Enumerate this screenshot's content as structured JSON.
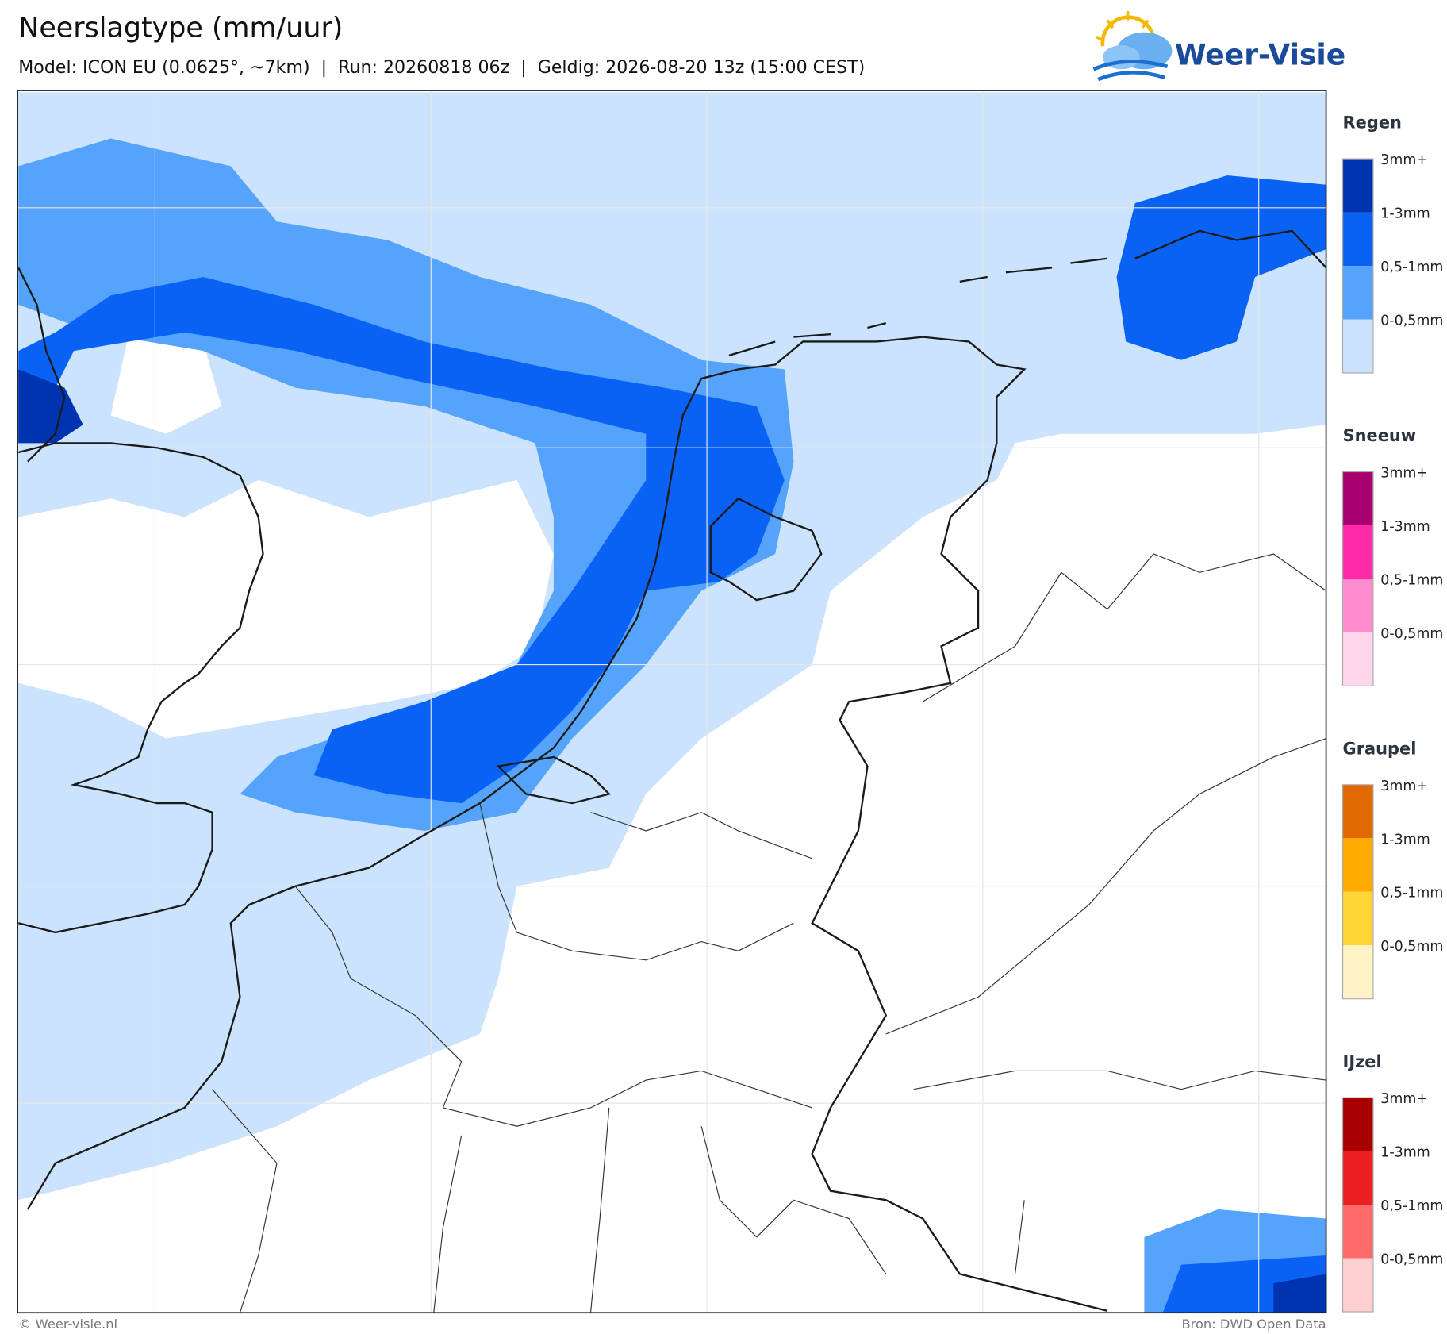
{
  "header": {
    "title": "Neerslagtype (mm/uur)",
    "subtitle": "Model: ICON EU (0.0625°, ~7km)  |  Run: 20260818 06z  |  Geldig: 2026-08-20 13z (15:00 CEST)"
  },
  "logo": {
    "text": "Weer-Visie"
  },
  "legend": [
    {
      "title": "Regen",
      "items": [
        {
          "label": "3mm+",
          "color": "#0033b0"
        },
        {
          "label": "1-3mm",
          "color": "#0a62f5"
        },
        {
          "label": "0,5-1mm",
          "color": "#55a3fb"
        },
        {
          "label": "0-0,5mm",
          "color": "#cce3fd"
        }
      ]
    },
    {
      "title": "Sneeuw",
      "items": [
        {
          "label": "3mm+",
          "color": "#a8006e"
        },
        {
          "label": "1-3mm",
          "color": "#ff2aa8"
        },
        {
          "label": "0,5-1mm",
          "color": "#ff8ccf"
        },
        {
          "label": "0-0,5mm",
          "color": "#ffd6ec"
        }
      ]
    },
    {
      "title": "Graupel",
      "items": [
        {
          "label": "3mm+",
          "color": "#e06a00"
        },
        {
          "label": "1-3mm",
          "color": "#ffaa00"
        },
        {
          "label": "0,5-1mm",
          "color": "#ffd633"
        },
        {
          "label": "0-0,5mm",
          "color": "#fff2c4"
        }
      ]
    },
    {
      "title": "IJzel",
      "items": [
        {
          "label": "3mm+",
          "color": "#a80000"
        },
        {
          "label": "1-3mm",
          "color": "#ec2020"
        },
        {
          "label": "0,5-1mm",
          "color": "#ff6b6b"
        },
        {
          "label": "0-0,5mm",
          "color": "#ffd0d0"
        }
      ]
    }
  ],
  "footer": {
    "copyright": "© Weer-visie.nl",
    "source": "Bron: DWD Open Data"
  }
}
